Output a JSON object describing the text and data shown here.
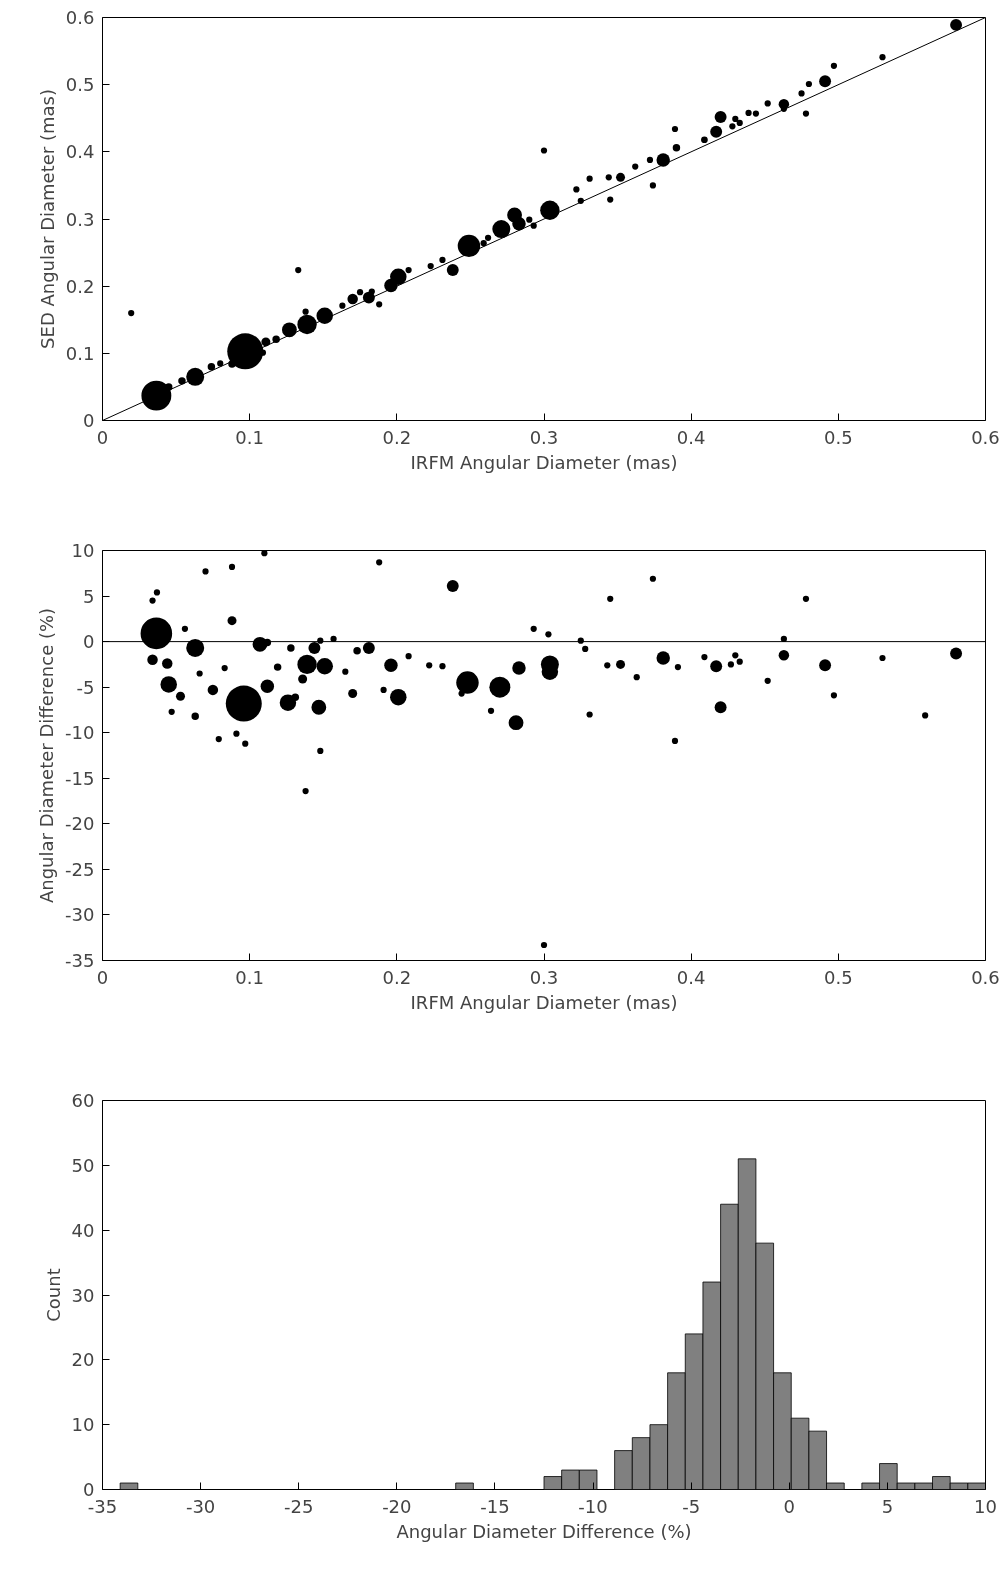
{
  "chart_data": [
    {
      "type": "bubble",
      "xlabel": "IRFM Angular Diameter (mas)",
      "ylabel": "SED Angular Diameter (mas)",
      "xlim": [
        0,
        0.6
      ],
      "ylim": [
        0,
        0.6
      ],
      "xticks": [
        0,
        0.1,
        0.2,
        0.3,
        0.4,
        0.5,
        0.6
      ],
      "yticks": [
        0,
        0.1,
        0.2,
        0.3,
        0.4,
        0.5,
        0.6
      ],
      "grid": false,
      "series": [
        {
          "type": "bubble",
          "color": "#000000",
          "x": [
            0.0366,
            0.097,
            0.063,
            0.127,
            0.139,
            0.151,
            0.17,
            0.181,
            0.201,
            0.196,
            0.238,
            0.249,
            0.271,
            0.28,
            0.283,
            0.304,
            0.381,
            0.42,
            0.417,
            0.463,
            0.491,
            0.58,
            0.0195,
            0.133,
            0.3,
            0.389,
            0.53,
            0.497,
            0.478,
            0.475,
            0.452,
            0.374,
            0.345,
            0.322,
            0.325,
            0.331,
            0.344,
            0.352,
            0.362,
            0.372,
            0.39,
            0.409,
            0.428,
            0.433,
            0.43,
            0.463,
            0.293,
            0.29,
            0.259,
            0.262,
            0.231,
            0.223,
            0.208,
            0.188,
            0.163,
            0.138,
            0.118,
            0.111,
            0.088,
            0.08,
            0.074,
            0.054,
            0.045,
            0.109,
            0.175,
            0.183,
            0.439,
            0.444,
            0.48
          ],
          "values": [
            0.037,
            0.103,
            0.065,
            0.135,
            0.143,
            0.156,
            0.181,
            0.183,
            0.214,
            0.201,
            0.224,
            0.26,
            0.285,
            0.306,
            0.293,
            0.313,
            0.388,
            0.452,
            0.43,
            0.471,
            0.505,
            0.589,
            0.16,
            0.224,
            0.402,
            0.434,
            0.541,
            0.528,
            0.457,
            0.487,
            0.472,
            0.35,
            0.329,
            0.344,
            0.327,
            0.36,
            0.362,
            0.362,
            0.378,
            0.388,
            0.406,
            0.418,
            0.438,
            0.443,
            0.449,
            0.464,
            0.29,
            0.299,
            0.264,
            0.272,
            0.239,
            0.23,
            0.224,
            0.173,
            0.171,
            0.162,
            0.121,
            0.117,
            0.084,
            0.085,
            0.08,
            0.059,
            0.05,
            0.101,
            0.191,
            0.192,
            0.458,
            0.457,
            0.501
          ],
          "sizes": [
            0.69,
            1,
            0.25,
            0.17,
            0.29,
            0.21,
            0.085,
            0.11,
            0.21,
            0.14,
            0.11,
            0.39,
            0.25,
            0.17,
            0.14,
            0.29,
            0.14,
            0.11,
            0.11,
            0.085,
            0.11,
            0.11,
            0.03,
            0.03,
            0.03,
            0.03,
            0.03,
            0.03,
            0.03,
            0.03,
            0.03,
            0.03,
            0.03,
            0.03,
            0.03,
            0.03,
            0.03,
            0.0625,
            0.03,
            0.03,
            0.043,
            0.035,
            0.03,
            0.03,
            0.03,
            0.03,
            0.03,
            0.03,
            0.03,
            0.03,
            0.03,
            0.03,
            0.03,
            0.03,
            0.03,
            0.03,
            0.043,
            0.0625,
            0.043,
            0.03,
            0.043,
            0.043,
            0.043,
            0.03,
            0.03,
            0.03,
            0.03,
            0.03,
            0.03
          ]
        },
        {
          "type": "line",
          "color": "#000000",
          "x": [
            0,
            0.6
          ],
          "values": [
            0,
            0.6
          ]
        }
      ]
    },
    {
      "type": "bubble",
      "xlabel": "IRFM Angular Diameter (mas)",
      "ylabel": "Angular Diameter Difference (%)",
      "xlim": [
        0,
        0.6
      ],
      "ylim": [
        -35,
        10
      ],
      "xticks": [
        0,
        0.1,
        0.2,
        0.3,
        0.4,
        0.5,
        0.6
      ],
      "yticks": [
        10,
        5,
        0,
        -5,
        -10,
        -15,
        -20,
        -25,
        -30,
        -35
      ],
      "grid": false,
      "ref_lines": [
        {
          "axis": "y",
          "value": 0,
          "color": "#000000"
        }
      ],
      "series": [
        {
          "type": "bubble",
          "color": "#000000",
          "x": [
            0.0366,
            0.096,
            0.063,
            0.107,
            0.045,
            0.139,
            0.151,
            0.126,
            0.147,
            0.112,
            0.144,
            0.181,
            0.196,
            0.201,
            0.238,
            0.248,
            0.27,
            0.281,
            0.304,
            0.304,
            0.283,
            0.381,
            0.42,
            0.417,
            0.463,
            0.491,
            0.58,
            0.075,
            0.053,
            0.034,
            0.044,
            0.088,
            0.138,
            0.3,
            0.11,
            0.188,
            0.088,
            0.07,
            0.037,
            0.034,
            0.374,
            0.345,
            0.478,
            0.389,
            0.559,
            0.53,
            0.497,
            0.079,
            0.097,
            0.091,
            0.148,
            0.063,
            0.047,
            0.264,
            0.331,
            0.463,
            0.293,
            0.303,
            0.325,
            0.452,
            0.391,
            0.363,
            0.352,
            0.343,
            0.328,
            0.222,
            0.231,
            0.17,
            0.173,
            0.128,
            0.112,
            0.157,
            0.148,
            0.056,
            0.43,
            0.433,
            0.409,
            0.427,
            0.244,
            0.191,
            0.208,
            0.165,
            0.119,
            0.131,
            0.136,
            0.083,
            0.066
          ],
          "values": [
            0.9,
            -6.8,
            -0.7,
            -0.3,
            -4.7,
            -2.5,
            -2.7,
            -6.7,
            -7.2,
            -4.9,
            -0.7,
            -0.7,
            -2.6,
            -6.1,
            6.1,
            -4.5,
            -5.0,
            -8.9,
            -2.5,
            -3.3,
            -2.9,
            -1.8,
            -7.2,
            -2.7,
            -1.5,
            -2.6,
            -1.3,
            -5.3,
            -6.0,
            -2.0,
            -2.4,
            2.3,
            -16.4,
            -33.3,
            9.7,
            8.7,
            8.2,
            7.7,
            5.4,
            4.5,
            6.9,
            4.7,
            4.7,
            -10.9,
            -8.1,
            -1.8,
            -5.9,
            -10.7,
            -11.2,
            -10.1,
            -12.0,
            -8.2,
            -7.7,
            -7.6,
            -8.0,
            0.3,
            1.4,
            0.8,
            0.1,
            -4.3,
            -2.8,
            -3.9,
            -2.5,
            -2.6,
            -0.8,
            -2.6,
            -2.7,
            -5.7,
            -1.0,
            -0.7,
            -0.1,
            0.3,
            0.1,
            1.4,
            -1.5,
            -2.2,
            -1.7,
            -2.5,
            -5.7,
            -5.3,
            -1.6,
            -3.3,
            -2.8,
            -6.1,
            -4.1,
            -2.9,
            -3.5
          ],
          "sizes": [
            0.77,
            1,
            0.25,
            0.17,
            0.21,
            0.29,
            0.21,
            0.21,
            0.17,
            0.14,
            0.11,
            0.11,
            0.14,
            0.21,
            0.11,
            0.39,
            0.34,
            0.17,
            0.25,
            0.21,
            0.14,
            0.14,
            0.11,
            0.11,
            0.085,
            0.11,
            0.11,
            0.085,
            0.0625,
            0.085,
            0.085,
            0.0625,
            0.03,
            0.03,
            0.03,
            0.03,
            0.03,
            0.03,
            0.03,
            0.03,
            0.03,
            0.03,
            0.03,
            0.03,
            0.03,
            0.03,
            0.03,
            0.03,
            0.03,
            0.03,
            0.03,
            0.043,
            0.03,
            0.03,
            0.03,
            0.03,
            0.03,
            0.03,
            0.03,
            0.03,
            0.03,
            0.03,
            0.0625,
            0.03,
            0.03,
            0.03,
            0.03,
            0.0625,
            0.043,
            0.043,
            0.043,
            0.03,
            0.03,
            0.03,
            0.03,
            0.03,
            0.03,
            0.03,
            0.03,
            0.03,
            0.03,
            0.03,
            0.043,
            0.043,
            0.0625,
            0.03,
            0.03
          ]
        }
      ]
    },
    {
      "type": "histogram",
      "xlabel": "Angular Diameter Difference (%)",
      "ylabel": "Count",
      "xlim": [
        -35,
        10
      ],
      "ylim": [
        0,
        60
      ],
      "xticks": [
        -35,
        -30,
        -25,
        -20,
        -15,
        -10,
        -5,
        0,
        5,
        10
      ],
      "yticks": [
        0,
        10,
        20,
        30,
        40,
        50,
        60
      ],
      "grid": false,
      "color": "#808080",
      "bins": [
        -34.1,
        -33.2,
        -32.3,
        -31.4,
        -30.5,
        -29.6,
        -28.7,
        -27.8,
        -26.9,
        -26.0,
        -25.1,
        -24.2,
        -23.3,
        -22.4,
        -21.5,
        -20.6,
        -19.7,
        -18.8,
        -17.9,
        -17.0,
        -16.1,
        -15.2,
        -14.3,
        -13.4,
        -12.5,
        -11.6,
        -10.7,
        -9.8,
        -8.9,
        -8.0,
        -7.1,
        -6.2,
        -5.3,
        -4.4,
        -3.5,
        -2.6,
        -1.7,
        -0.8,
        0.1,
        1.0,
        1.9,
        2.8,
        3.7,
        4.6,
        5.5,
        6.4,
        7.3,
        8.2,
        9.1,
        10.0
      ],
      "values": [
        1,
        0,
        0,
        0,
        0,
        0,
        0,
        0,
        0,
        0,
        0,
        0,
        0,
        0,
        0,
        0,
        0,
        0,
        0,
        1,
        0,
        0,
        0,
        0,
        2,
        3,
        3,
        0,
        6,
        8,
        10,
        18,
        24,
        32,
        44,
        51,
        38,
        18,
        11,
        9,
        1,
        0,
        1,
        4,
        1,
        1,
        2,
        1,
        1
      ]
    }
  ]
}
